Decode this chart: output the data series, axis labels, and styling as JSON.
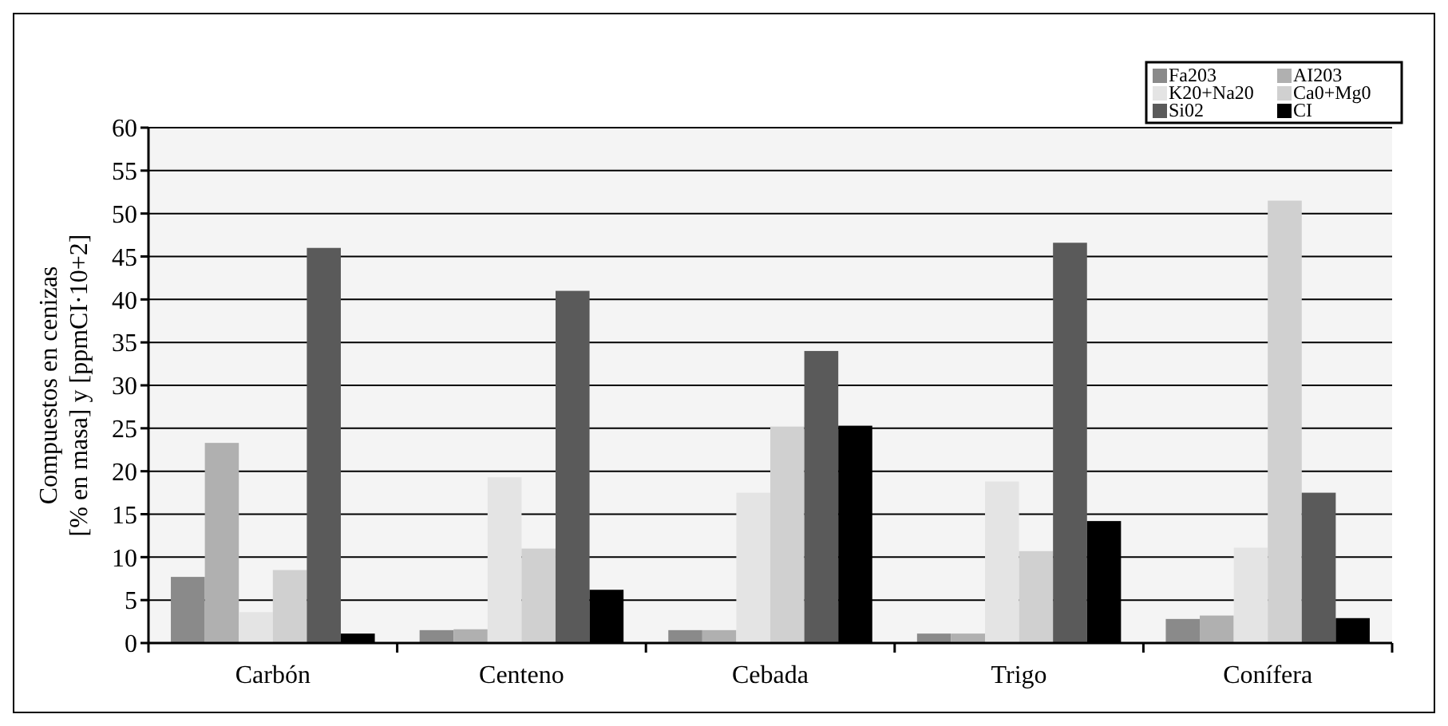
{
  "chart_data": {
    "type": "bar",
    "ylabel": "Compuestos en cenizas\n[% en masa] y [ppmCI·10+2]",
    "categories": [
      "Carbón",
      "Centeno",
      "Cebada",
      "Trigo",
      "Conífera"
    ],
    "series": [
      {
        "name": "Fa203",
        "color": "#8a8a8a",
        "values": [
          7.7,
          1.5,
          1.5,
          1.1,
          2.8
        ]
      },
      {
        "name": "AI203",
        "color": "#b0b0b0",
        "values": [
          23.3,
          1.6,
          1.5,
          1.1,
          3.2
        ]
      },
      {
        "name": "K20+Na20",
        "color": "#e4e4e4",
        "values": [
          3.6,
          19.3,
          17.5,
          18.8,
          11.1
        ]
      },
      {
        "name": "Ca0+Mg0",
        "color": "#d0d0d0",
        "values": [
          8.5,
          11,
          25.2,
          10.7,
          51.5
        ]
      },
      {
        "name": "Si02",
        "color": "#5a5a5a",
        "values": [
          46,
          41,
          34,
          46.6,
          17.5
        ]
      },
      {
        "name": "CI",
        "color": "#000000",
        "values": [
          1.1,
          6.2,
          25.3,
          14.2,
          2.9
        ]
      }
    ],
    "ylim": [
      0,
      60
    ],
    "yticks": [
      0,
      5,
      10,
      15,
      20,
      25,
      30,
      35,
      40,
      45,
      50,
      55,
      60
    ],
    "grid": "y",
    "legend": "top right"
  }
}
